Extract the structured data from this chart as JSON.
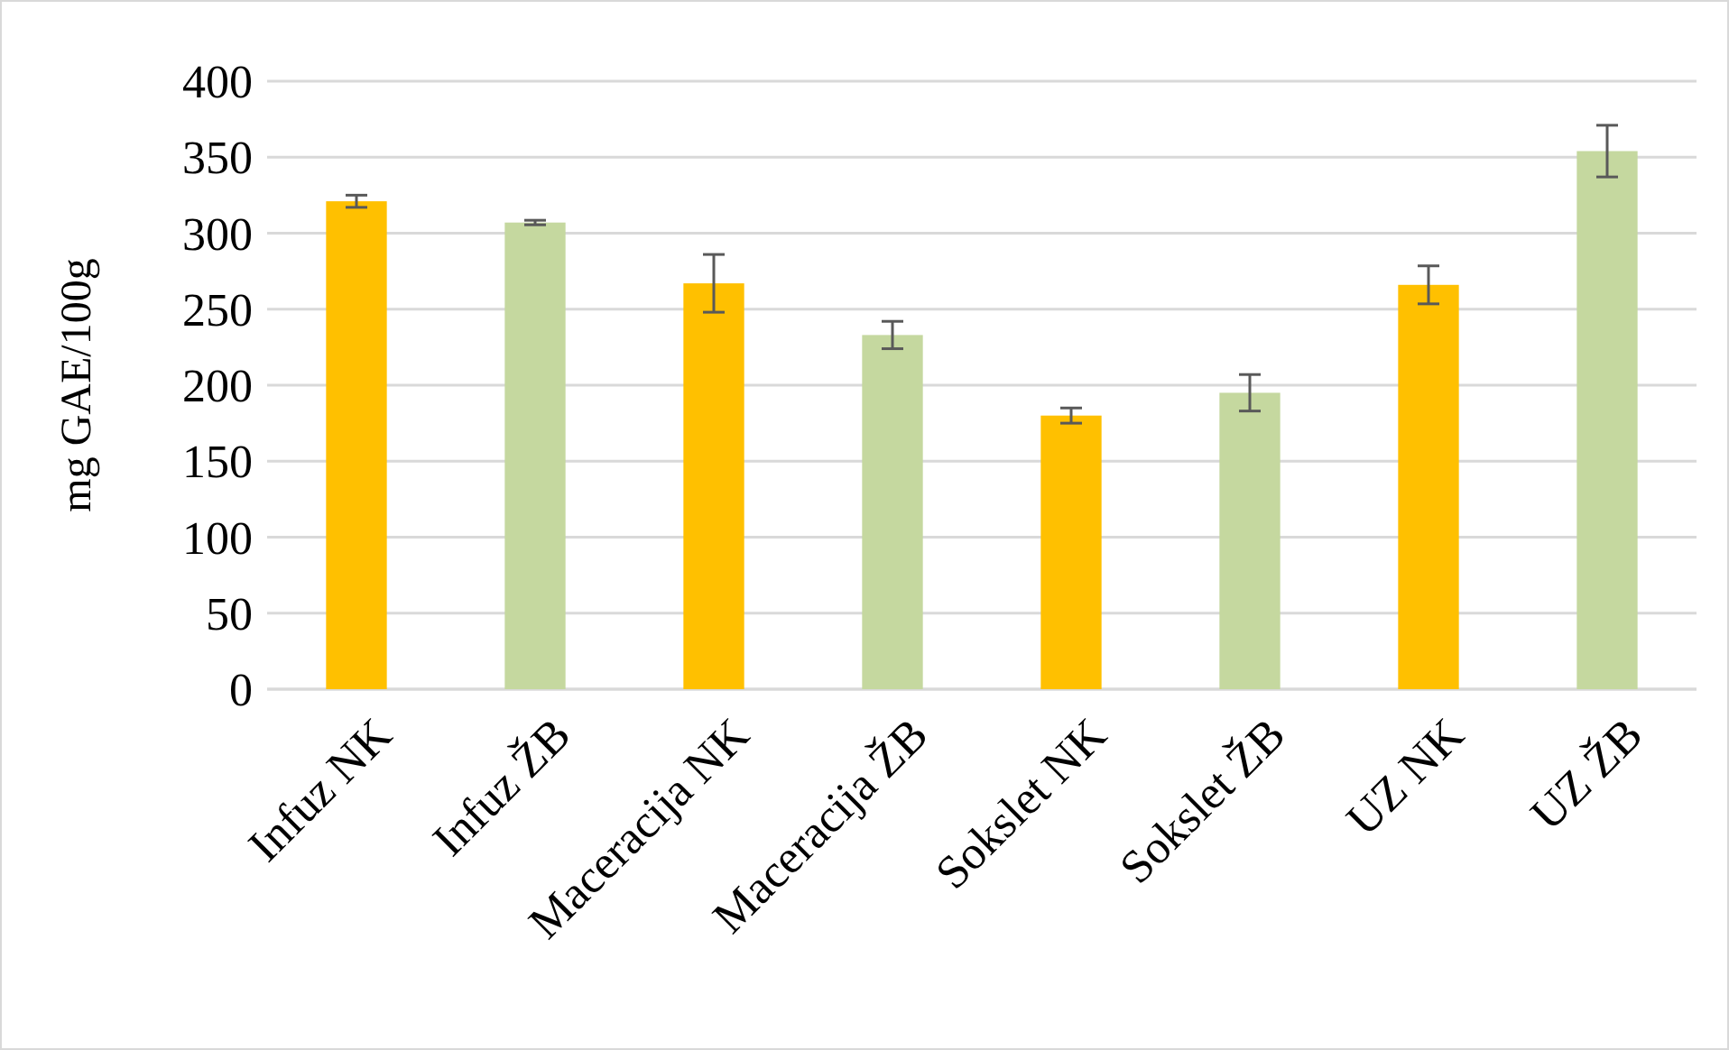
{
  "chart_data": {
    "type": "bar",
    "ylabel": "mg GAE/100g",
    "categories": [
      "Infuz NK",
      "Infuz ŽB",
      "Maceracija NK",
      "Maceracija ŽB",
      "Sokslet NK",
      "Sokslet ŽB",
      "UZ NK",
      "UZ ŽB"
    ],
    "values": [
      321,
      307,
      267,
      233,
      180,
      195,
      266,
      354
    ],
    "colors": [
      "#ffc000",
      "#c5d89f",
      "#ffc000",
      "#c5d89f",
      "#ffc000",
      "#c5d89f",
      "#ffc000",
      "#c5d89f"
    ],
    "errors": [
      4,
      1.5,
      19,
      9,
      5,
      12,
      12.5,
      17
    ],
    "ylim": [
      0,
      400
    ],
    "yticks": [
      0,
      50,
      100,
      150,
      200,
      250,
      300,
      350,
      400
    ],
    "grid": "y"
  }
}
